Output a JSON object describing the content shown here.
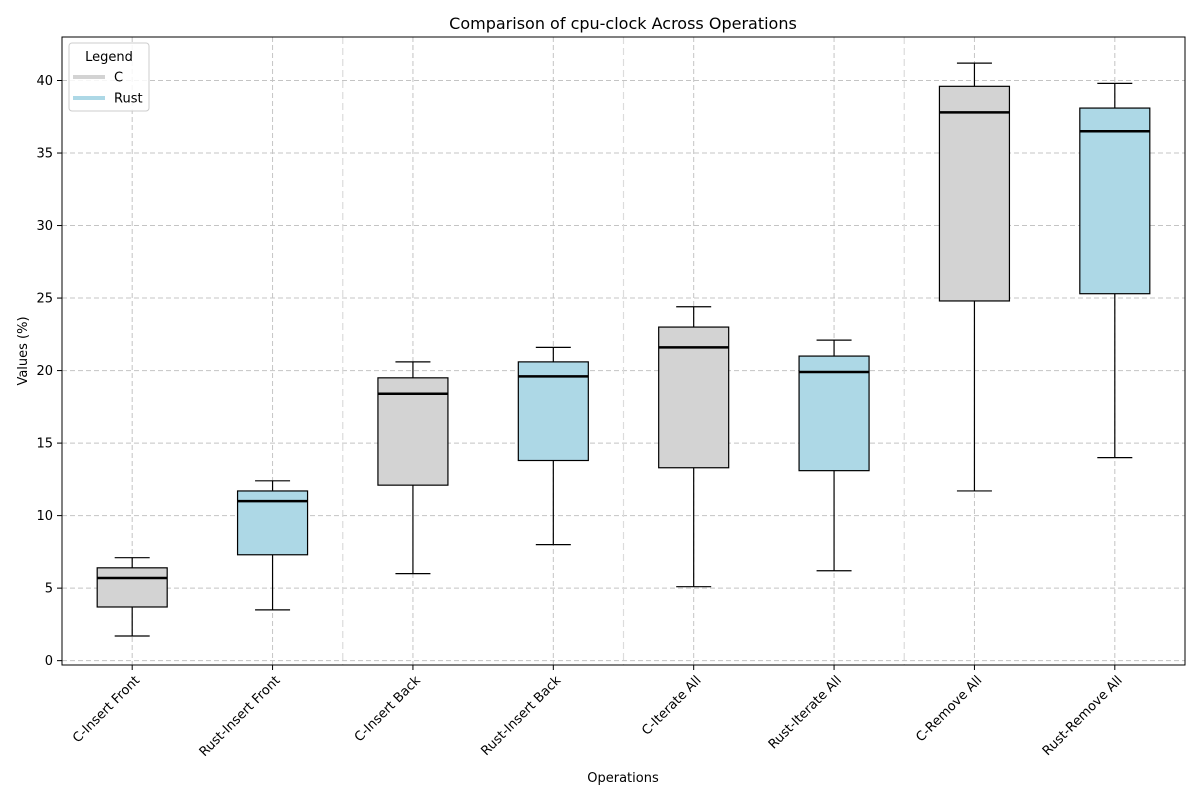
{
  "chart_data": {
    "type": "box",
    "title": "Comparison of cpu-clock Across Operations",
    "xlabel": "Operations",
    "ylabel": "Values (%)",
    "ylim": [
      -0.3,
      43.0
    ],
    "yticks": [
      0,
      5,
      10,
      15,
      20,
      25,
      30,
      35,
      40
    ],
    "grid": true,
    "legend": {
      "title": "Legend",
      "position": "top-left",
      "entries": [
        {
          "label": "C",
          "color": "#d3d3d3"
        },
        {
          "label": "Rust",
          "color": "#add8e6"
        }
      ]
    },
    "categories": [
      "C-Insert Front",
      "Rust-Insert Front",
      "C-Insert Back",
      "Rust-Insert Back",
      "C-Iterate All",
      "Rust-Iterate All",
      "C-Remove All",
      "Rust-Remove All"
    ],
    "boxes": [
      {
        "label": "C-Insert Front",
        "group": "C",
        "min": 1.7,
        "q1": 3.7,
        "median": 5.7,
        "q3": 6.4,
        "max": 7.1
      },
      {
        "label": "Rust-Insert Front",
        "group": "Rust",
        "min": 3.5,
        "q1": 7.3,
        "median": 11.0,
        "q3": 11.7,
        "max": 12.4
      },
      {
        "label": "C-Insert Back",
        "group": "C",
        "min": 6.0,
        "q1": 12.1,
        "median": 18.4,
        "q3": 19.5,
        "max": 20.6
      },
      {
        "label": "Rust-Insert Back",
        "group": "Rust",
        "min": 8.0,
        "q1": 13.8,
        "median": 19.6,
        "q3": 20.6,
        "max": 21.6
      },
      {
        "label": "C-Iterate All",
        "group": "C",
        "min": 5.1,
        "q1": 13.3,
        "median": 21.6,
        "q3": 23.0,
        "max": 24.4
      },
      {
        "label": "Rust-Iterate All",
        "group": "Rust",
        "min": 6.2,
        "q1": 13.1,
        "median": 19.9,
        "q3": 21.0,
        "max": 22.1
      },
      {
        "label": "C-Remove All",
        "group": "C",
        "min": 11.7,
        "q1": 24.8,
        "median": 37.8,
        "q3": 39.6,
        "max": 41.2
      },
      {
        "label": "Rust-Remove All",
        "group": "Rust",
        "min": 14.0,
        "q1": 25.3,
        "median": 36.5,
        "q3": 38.1,
        "max": 39.8
      }
    ]
  }
}
